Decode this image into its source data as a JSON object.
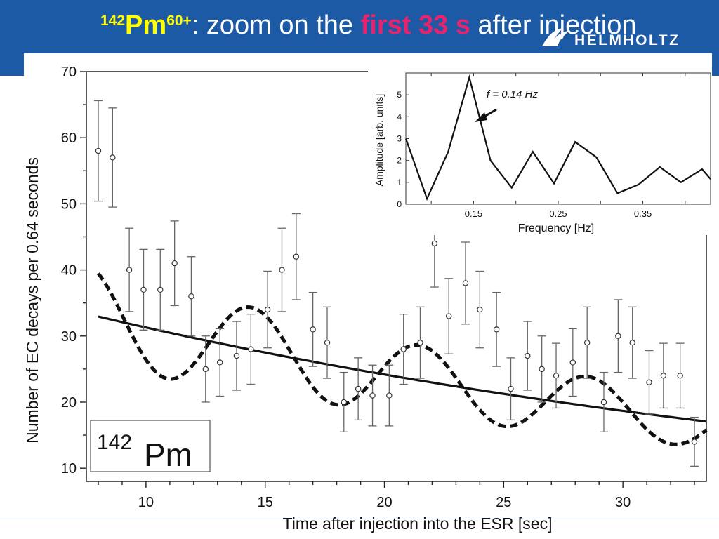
{
  "slide": {
    "title": {
      "mass_number": "142",
      "element": "Pm",
      "charge": "60+",
      "text_before": ": zoom on the ",
      "highlight": "first 33 s",
      "text_after": " after injection"
    },
    "logo_text": "HELMHOLTZ",
    "colors": {
      "banner": "#1d5aa6",
      "title_accent_yellow": "#ffff00",
      "title_accent_magenta": "#e8236d"
    }
  },
  "chart_data": [
    {
      "type": "scatter",
      "xlabel": "Time after injection into the ESR [sec]",
      "ylabel": "Number of EC decays per 0.64 seconds",
      "xlim": [
        7.5,
        33.5
      ],
      "ylim": [
        8,
        70
      ],
      "xticks": [
        10,
        15,
        20,
        25,
        30
      ],
      "yticks": [
        10,
        20,
        30,
        40,
        50,
        60,
        70
      ],
      "grid": false,
      "label_box": {
        "mass_number": "142",
        "element": "Pm"
      },
      "points": {
        "x": [
          8.0,
          8.6,
          9.3,
          9.9,
          10.6,
          11.2,
          11.9,
          12.5,
          13.1,
          13.8,
          14.4,
          15.1,
          15.7,
          16.3,
          17.0,
          17.6,
          18.3,
          18.9,
          19.5,
          20.2,
          20.8,
          21.5,
          22.1,
          22.7,
          23.4,
          24.0,
          24.7,
          25.3,
          26.0,
          26.6,
          27.2,
          27.9,
          28.5,
          29.2,
          29.8,
          30.4,
          31.1,
          31.7,
          32.4,
          33.0
        ],
        "y": [
          58,
          57,
          40,
          37,
          37,
          41,
          36,
          25,
          26,
          27,
          28,
          34,
          40,
          42,
          31,
          29,
          20,
          22,
          21,
          21,
          28,
          29,
          44,
          33,
          38,
          34,
          31,
          22,
          27,
          25,
          24,
          26,
          29,
          20,
          30,
          29,
          23,
          24,
          24,
          14
        ],
        "err": [
          7.6,
          7.5,
          6.3,
          6.1,
          6.1,
          6.4,
          6.0,
          5.0,
          5.1,
          5.2,
          5.3,
          5.8,
          6.3,
          6.5,
          5.6,
          5.4,
          4.5,
          4.7,
          4.6,
          4.6,
          5.3,
          5.4,
          6.6,
          5.7,
          6.2,
          5.8,
          5.6,
          4.7,
          5.2,
          5.0,
          4.9,
          5.1,
          5.4,
          4.5,
          5.5,
          5.4,
          4.8,
          4.9,
          4.9,
          3.7
        ]
      },
      "fits": [
        {
          "style": "solid",
          "model": "exponential",
          "a": 40.5,
          "lambda": 0.0258
        },
        {
          "style": "dashed",
          "model": "exponential-modulated",
          "a": 40.5,
          "lambda": 0.0258,
          "amplitude": 0.23,
          "period": 7.06,
          "phase": -0.3
        }
      ]
    },
    {
      "type": "line",
      "xlabel": "Frequency [Hz]",
      "ylabel": "Amplitude [arb. units]",
      "xlim": [
        0.07,
        0.43
      ],
      "ylim": [
        0,
        6
      ],
      "xticks": [
        0.15,
        0.25,
        0.35
      ],
      "yticks": [
        0,
        1,
        2,
        3,
        4,
        5
      ],
      "annotation": "f = 0.14 Hz",
      "series": [
        {
          "x": [
            0.07,
            0.095,
            0.12,
            0.145,
            0.17,
            0.195,
            0.22,
            0.245,
            0.27,
            0.295,
            0.32,
            0.345,
            0.37,
            0.395,
            0.42,
            0.43
          ],
          "y": [
            3.0,
            0.25,
            2.4,
            5.8,
            2.0,
            0.75,
            2.4,
            0.95,
            2.85,
            2.15,
            0.5,
            0.9,
            1.7,
            1.0,
            1.6,
            1.15
          ]
        }
      ]
    }
  ]
}
